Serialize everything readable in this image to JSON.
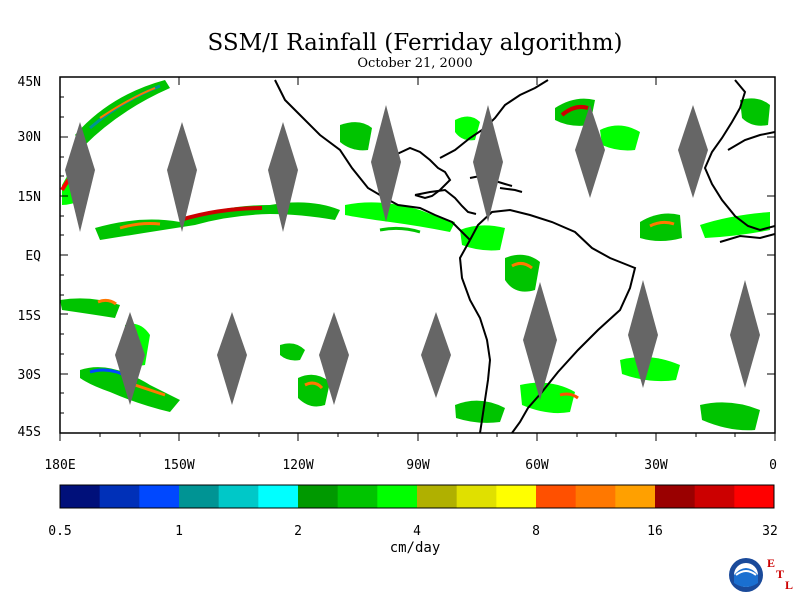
{
  "title": "SSM/I Rainfall (Ferriday algorithm)",
  "subtitle": "October 21, 2000",
  "lat_labels": [
    "45N",
    "30N",
    "15N",
    "EQ",
    "15S",
    "30S",
    "45S"
  ],
  "lon_labels": [
    "180E",
    "150W",
    "120W",
    "90W",
    "60W",
    "30W",
    "0"
  ],
  "colorbar": {
    "colors": [
      "#00107a",
      "#0030b8",
      "#0048ff",
      "#009494",
      "#00c8c8",
      "#00ffff",
      "#009900",
      "#00c400",
      "#00ff00",
      "#b0b000",
      "#e0e000",
      "#ffff00",
      "#ff5000",
      "#ff7800",
      "#ffa000",
      "#9a0000",
      "#cc0000",
      "#ff0000"
    ],
    "tick_labels": [
      "0.5",
      "1",
      "2",
      "4",
      "8",
      "16",
      "32"
    ],
    "units": "cm/day"
  },
  "logo": {
    "name": "NOAA",
    "letters": [
      "E",
      "T",
      "L"
    ]
  }
}
